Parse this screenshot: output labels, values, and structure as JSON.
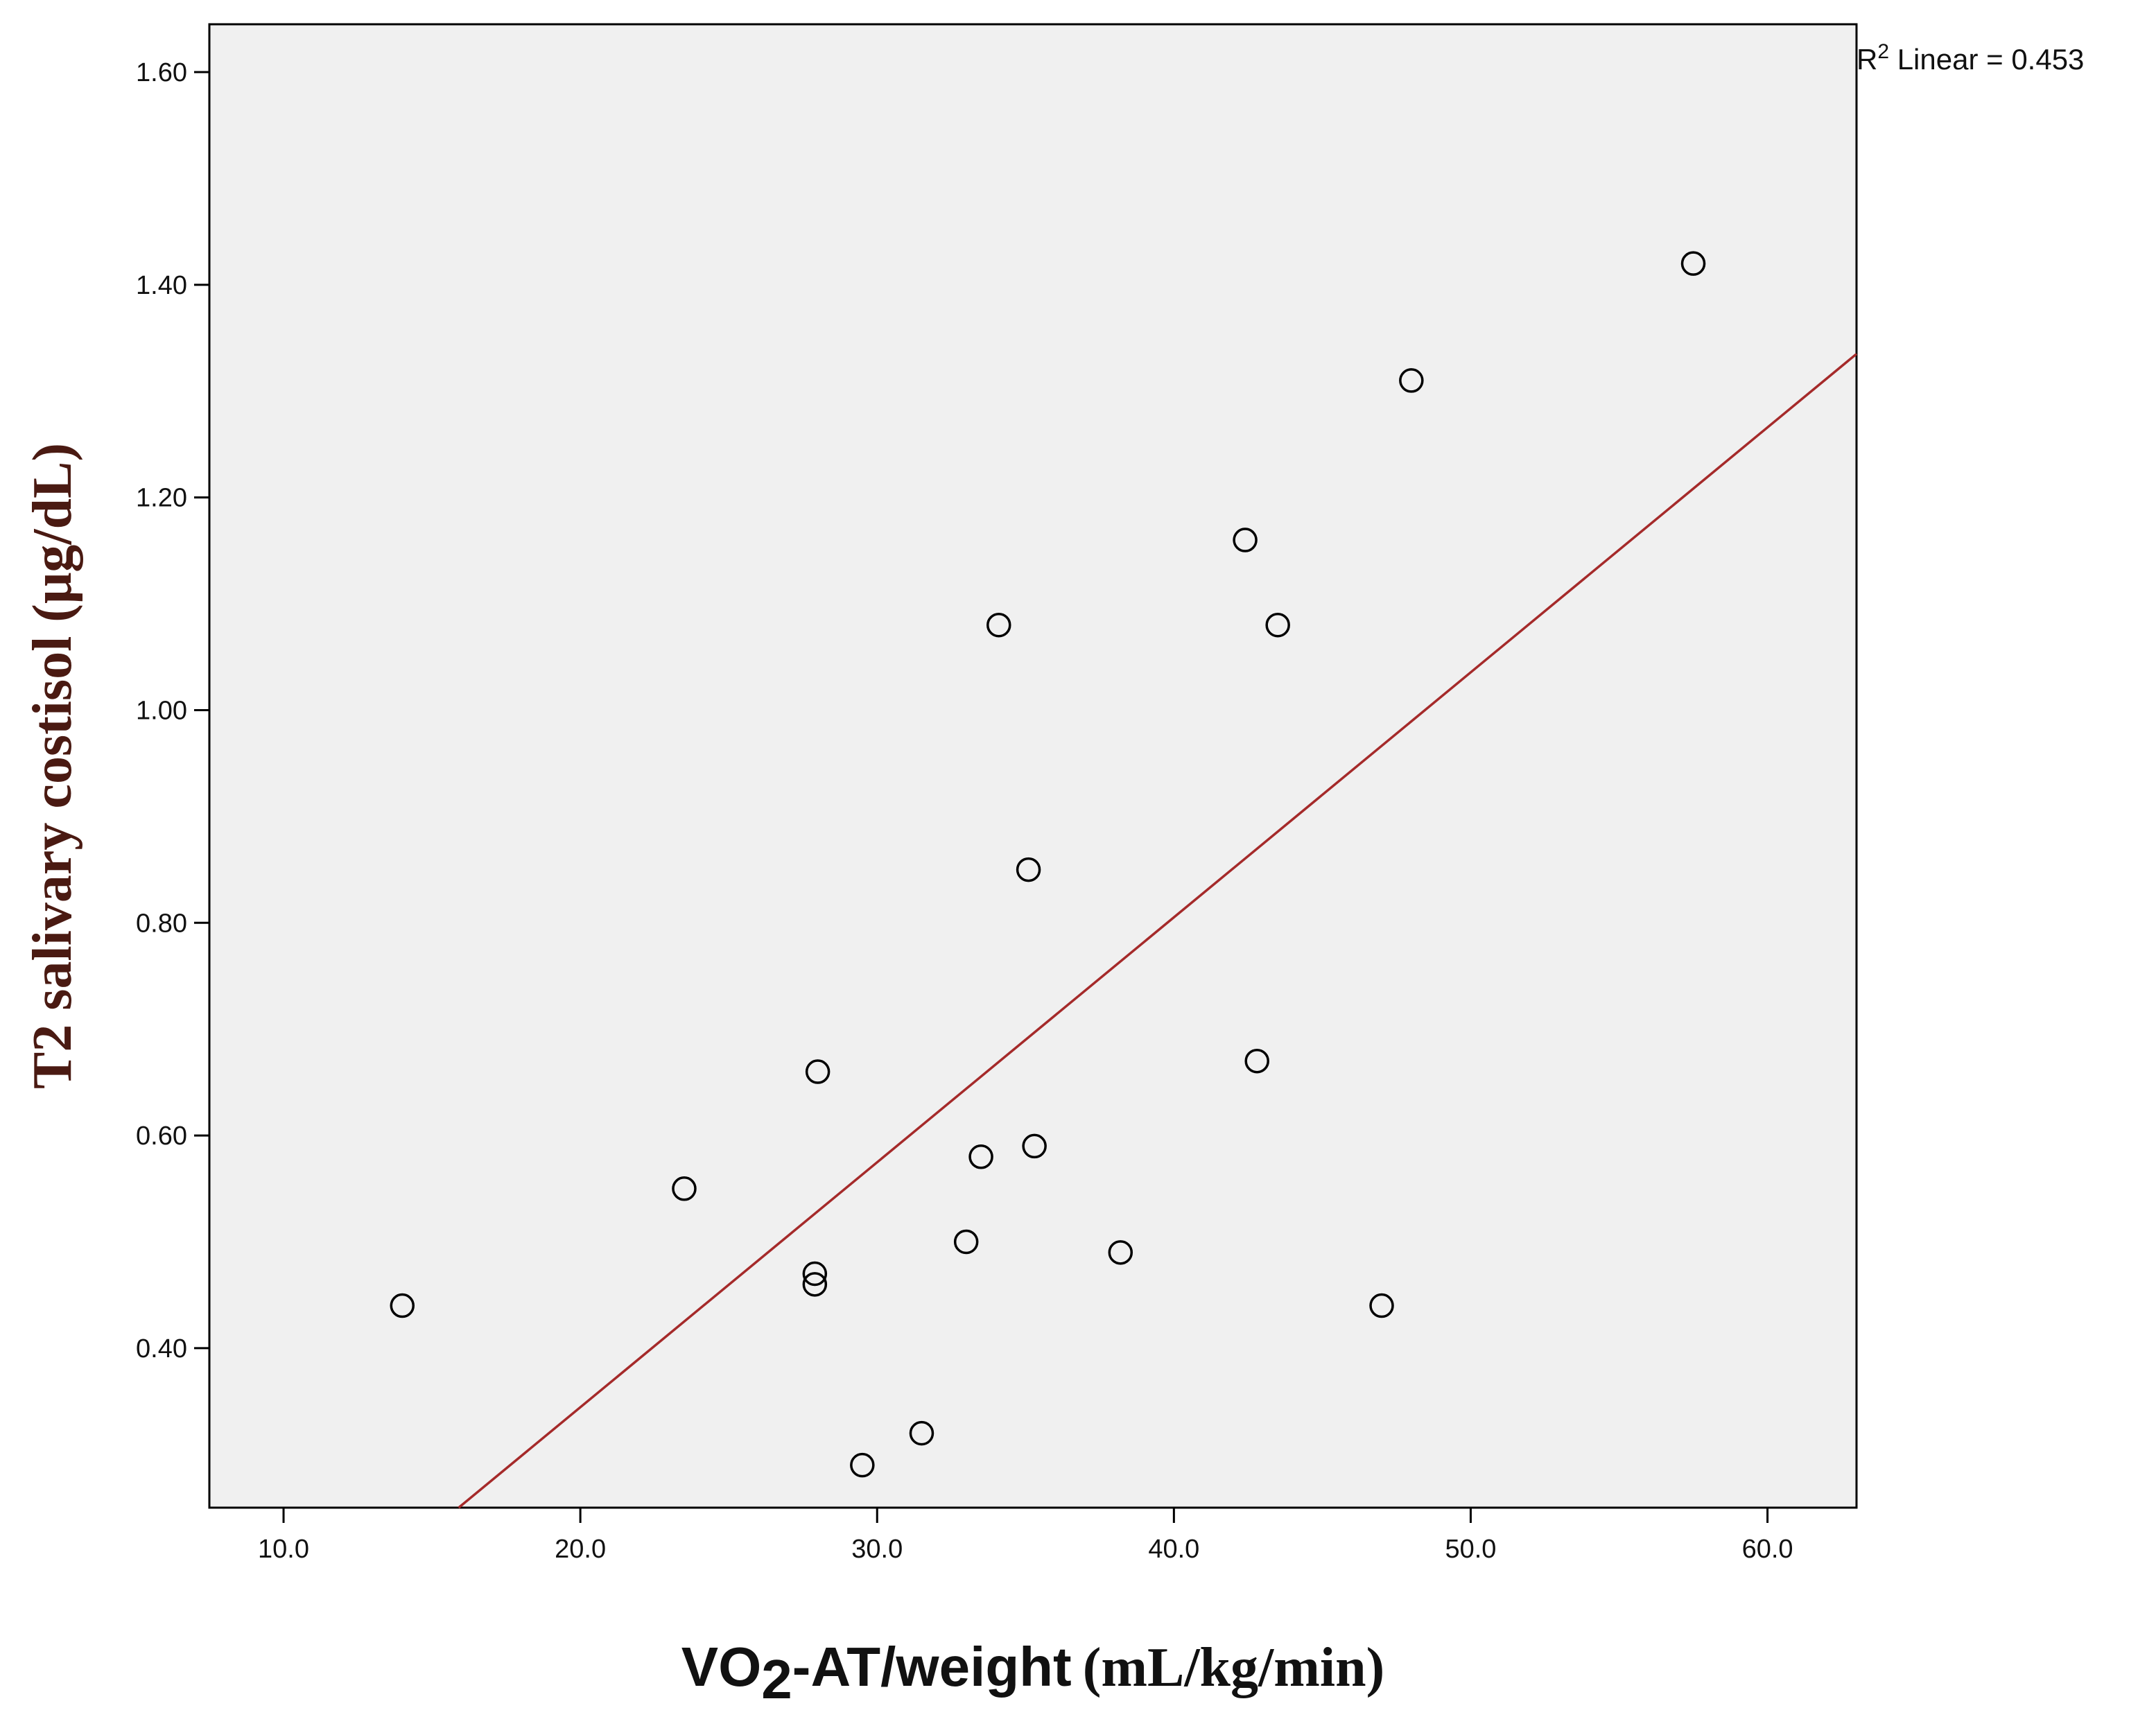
{
  "chart_data": {
    "type": "scatter",
    "xlabel": {
      "prefix": "VO",
      "subscript": "2",
      "middle": "-AT/weight",
      "units": "(mL/kg/min)"
    },
    "ylabel": "T2 salivary costisol (μg/dL)",
    "xlim": [
      7.5,
      63.0
    ],
    "ylim": [
      0.25,
      1.645
    ],
    "x_ticks": [
      {
        "value": 10,
        "label": "10.0"
      },
      {
        "value": 20,
        "label": "20.0"
      },
      {
        "value": 30,
        "label": "30.0"
      },
      {
        "value": 40,
        "label": "40.0"
      },
      {
        "value": 50,
        "label": "50.0"
      },
      {
        "value": 60,
        "label": "60.0"
      }
    ],
    "y_ticks": [
      {
        "value": 0.4,
        "label": "0.40"
      },
      {
        "value": 0.6,
        "label": "0.60"
      },
      {
        "value": 0.8,
        "label": "0.80"
      },
      {
        "value": 1.0,
        "label": "1.00"
      },
      {
        "value": 1.2,
        "label": "1.20"
      },
      {
        "value": 1.4,
        "label": "1.40"
      },
      {
        "value": 1.6,
        "label": "1.60"
      }
    ],
    "points": [
      {
        "x": 14.0,
        "y": 0.44
      },
      {
        "x": 23.5,
        "y": 0.55
      },
      {
        "x": 27.9,
        "y": 0.47
      },
      {
        "x": 27.9,
        "y": 0.46
      },
      {
        "x": 28.0,
        "y": 0.66
      },
      {
        "x": 29.5,
        "y": 0.29
      },
      {
        "x": 31.5,
        "y": 0.32
      },
      {
        "x": 33.0,
        "y": 0.5
      },
      {
        "x": 33.5,
        "y": 0.58
      },
      {
        "x": 34.1,
        "y": 1.08
      },
      {
        "x": 35.1,
        "y": 0.85
      },
      {
        "x": 35.3,
        "y": 0.59
      },
      {
        "x": 38.2,
        "y": 0.49
      },
      {
        "x": 42.4,
        "y": 1.16
      },
      {
        "x": 42.8,
        "y": 0.67
      },
      {
        "x": 43.5,
        "y": 1.08
      },
      {
        "x": 47.0,
        "y": 0.44
      },
      {
        "x": 48.0,
        "y": 1.31
      },
      {
        "x": 57.5,
        "y": 1.42
      }
    ],
    "fit_line": {
      "x": [
        15.9,
        63.0
      ],
      "y": [
        0.25,
        1.335
      ],
      "color": "#a52a2a"
    },
    "r2_annotation": {
      "prefix": "R",
      "superscript": "2",
      "text": " Linear = 0.453"
    },
    "plot_background": "#f0f0f0",
    "marker_color": "#000000",
    "grid": false
  }
}
